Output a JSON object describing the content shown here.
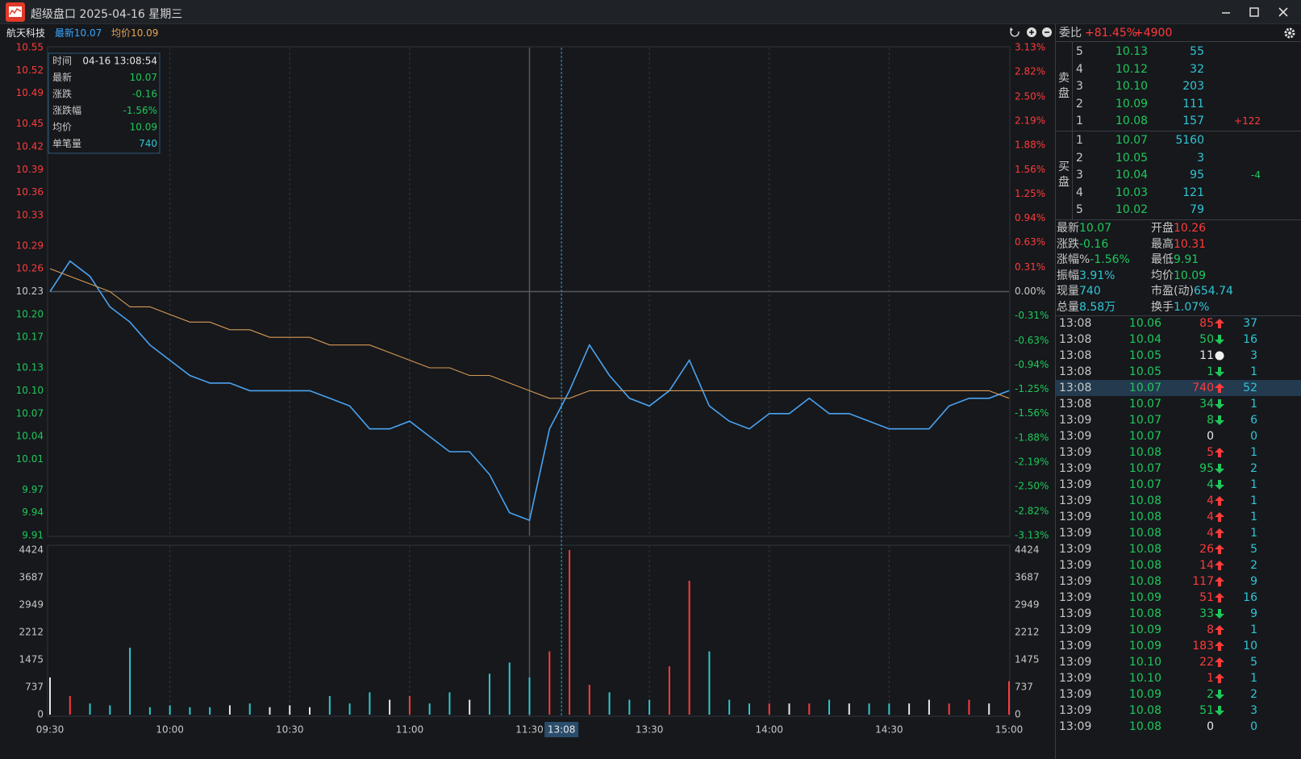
{
  "window": {
    "title": "超级盘口 2025-04-16 星期三"
  },
  "stock": {
    "name": "航天科技",
    "latest": "10.07",
    "avg": "10.09"
  },
  "tooltip": {
    "rows": [
      {
        "label": "时间",
        "value": "04-16 13:08:54",
        "tone": "plain"
      },
      {
        "label": "最新",
        "value": "10.07",
        "tone": "down"
      },
      {
        "label": "涨跌",
        "value": "-0.16",
        "tone": "down"
      },
      {
        "label": "涨跌幅",
        "value": "-1.56%",
        "tone": "down"
      },
      {
        "label": "均价",
        "value": "10.09",
        "tone": "down"
      },
      {
        "label": "单笔量",
        "value": "740",
        "tone": "neutral"
      }
    ]
  },
  "chart_data": [
    {
      "type": "line",
      "x": [
        "09:30",
        "09:35",
        "09:40",
        "09:45",
        "09:50",
        "09:55",
        "10:00",
        "10:05",
        "10:10",
        "10:15",
        "10:20",
        "10:25",
        "10:30",
        "10:35",
        "10:40",
        "10:45",
        "10:50",
        "10:55",
        "11:00",
        "11:05",
        "11:10",
        "11:15",
        "11:20",
        "11:25",
        "11:30",
        "13:05",
        "13:10",
        "13:15",
        "13:20",
        "13:25",
        "13:30",
        "13:35",
        "13:40",
        "13:45",
        "13:50",
        "13:55",
        "14:00",
        "14:05",
        "14:10",
        "14:15",
        "14:20",
        "14:25",
        "14:30",
        "14:35",
        "14:40",
        "14:45",
        "14:50",
        "14:55",
        "15:00"
      ],
      "xlim": [
        "09:30",
        "15:00"
      ],
      "xticks": [
        "09:30",
        "10:00",
        "10:30",
        "11:00",
        "11:30",
        "13:30",
        "14:00",
        "14:30",
        "15:00"
      ],
      "crosshair": "13:08",
      "series": [
        {
          "name": "最新",
          "color": "#4aa3f0",
          "values": [
            10.23,
            10.27,
            10.25,
            10.21,
            10.19,
            10.16,
            10.14,
            10.12,
            10.11,
            10.11,
            10.1,
            10.1,
            10.1,
            10.1,
            10.09,
            10.08,
            10.05,
            10.05,
            10.06,
            10.04,
            10.02,
            10.02,
            9.99,
            9.94,
            9.93,
            10.05,
            10.1,
            10.16,
            10.12,
            10.09,
            10.08,
            10.1,
            10.14,
            10.08,
            10.06,
            10.05,
            10.07,
            10.07,
            10.09,
            10.07,
            10.07,
            10.06,
            10.05,
            10.05,
            10.05,
            10.08,
            10.09,
            10.09,
            10.1
          ]
        },
        {
          "name": "均价",
          "color": "#d79a55",
          "values": [
            10.26,
            10.25,
            10.24,
            10.23,
            10.21,
            10.21,
            10.2,
            10.19,
            10.19,
            10.18,
            10.18,
            10.17,
            10.17,
            10.17,
            10.16,
            10.16,
            10.16,
            10.15,
            10.14,
            10.13,
            10.13,
            10.12,
            10.12,
            10.11,
            10.1,
            10.09,
            10.09,
            10.1,
            10.1,
            10.1,
            10.1,
            10.1,
            10.1,
            10.1,
            10.1,
            10.1,
            10.1,
            10.1,
            10.1,
            10.1,
            10.1,
            10.1,
            10.1,
            10.1,
            10.1,
            10.1,
            10.1,
            10.1,
            10.09
          ]
        }
      ],
      "ylim": [
        9.91,
        10.55
      ],
      "yticks": [
        10.55,
        10.52,
        10.49,
        10.45,
        10.42,
        10.39,
        10.36,
        10.33,
        10.29,
        10.26,
        10.23,
        {
          "value": 10.2,
          "label": "10.20"
        },
        10.17,
        10.13,
        {
          "value": 10.1,
          "label": "10.10"
        },
        10.07,
        10.04,
        10.01,
        9.97,
        9.94,
        9.91
      ],
      "y2lim": [
        -3.13,
        3.13
      ],
      "y2ticks": [
        {
          "value": 3.13,
          "label": "3.13%"
        },
        {
          "value": 2.82,
          "label": "2.82%"
        },
        {
          "value": 2.5,
          "label": "2.50%"
        },
        {
          "value": 2.19,
          "label": "2.19%"
        },
        {
          "value": 1.88,
          "label": "1.88%"
        },
        {
          "value": 1.56,
          "label": "1.56%"
        },
        {
          "value": 1.25,
          "label": "1.25%"
        },
        {
          "value": 0.94,
          "label": "0.94%"
        },
        {
          "value": 0.63,
          "label": "0.63%"
        },
        {
          "value": 0.31,
          "label": "0.31%"
        },
        {
          "value": 0,
          "label": "0.00%"
        },
        {
          "value": -0.31,
          "label": "-0.31%"
        },
        {
          "value": -0.63,
          "label": "-0.63%"
        },
        {
          "value": -0.94,
          "label": "-0.94%"
        },
        {
          "value": -1.25,
          "label": "-1.25%"
        },
        {
          "value": -1.56,
          "label": "-1.56%"
        },
        {
          "value": -1.88,
          "label": "-1.88%"
        },
        {
          "value": -2.19,
          "label": "-2.19%"
        },
        {
          "value": -2.5,
          "label": "-2.50%"
        },
        {
          "value": -2.82,
          "label": "-2.82%"
        },
        {
          "value": -3.13,
          "label": "-3.13%"
        }
      ]
    },
    {
      "type": "bar",
      "x": [
        "09:30",
        "09:35",
        "09:40",
        "09:45",
        "09:50",
        "09:55",
        "10:00",
        "10:05",
        "10:10",
        "10:15",
        "10:20",
        "10:25",
        "10:30",
        "10:35",
        "10:40",
        "10:45",
        "10:50",
        "10:55",
        "11:00",
        "11:05",
        "11:10",
        "11:15",
        "11:20",
        "11:25",
        "11:30",
        "13:05",
        "13:10",
        "13:15",
        "13:20",
        "13:25",
        "13:30",
        "13:35",
        "13:40",
        "13:45",
        "13:50",
        "13:55",
        "14:00",
        "14:05",
        "14:10",
        "14:15",
        "14:20",
        "14:25",
        "14:30",
        "14:35",
        "14:40",
        "14:45",
        "14:50",
        "14:55",
        "15:00"
      ],
      "values": [
        1000,
        500,
        300,
        250,
        1800,
        200,
        250,
        200,
        200,
        250,
        300,
        200,
        250,
        200,
        500,
        300,
        600,
        400,
        500,
        300,
        600,
        400,
        1100,
        1400,
        1000,
        1700,
        4424,
        800,
        600,
        400,
        400,
        1300,
        3600,
        1700,
        400,
        300,
        300,
        300,
        300,
        400,
        300,
        300,
        300,
        300,
        400,
        300,
        400,
        300,
        900
      ],
      "ylim": [
        0,
        4424
      ],
      "yticks": [
        0,
        737,
        1475,
        2212,
        2949,
        3687,
        4424
      ]
    }
  ],
  "order_book": {
    "ratio_label": "委比",
    "ratio": "+81.45%",
    "diff": "+4900",
    "sell_label": "卖盘",
    "buy_label": "买盘",
    "sell": [
      {
        "level": "5",
        "price": "10.13",
        "volume": "55"
      },
      {
        "level": "4",
        "price": "10.12",
        "volume": "32"
      },
      {
        "level": "3",
        "price": "10.10",
        "volume": "203"
      },
      {
        "level": "2",
        "price": "10.09",
        "volume": "111"
      },
      {
        "level": "1",
        "price": "10.08",
        "volume": "157",
        "change": "+122"
      }
    ],
    "buy": [
      {
        "level": "1",
        "price": "10.07",
        "volume": "5160"
      },
      {
        "level": "2",
        "price": "10.05",
        "volume": "3"
      },
      {
        "level": "3",
        "price": "10.04",
        "volume": "95",
        "change": "-4"
      },
      {
        "level": "4",
        "price": "10.03",
        "volume": "121"
      },
      {
        "level": "5",
        "price": "10.02",
        "volume": "79"
      }
    ]
  },
  "stats": [
    {
      "label": "最新",
      "value": "10.07",
      "tone": "down"
    },
    {
      "label": "开盘",
      "value": "10.26",
      "tone": "up"
    },
    {
      "label": "涨跌",
      "value": "-0.16",
      "tone": "down"
    },
    {
      "label": "最高",
      "value": "10.31",
      "tone": "up"
    },
    {
      "label": "涨幅%",
      "value": "-1.56%",
      "tone": "down"
    },
    {
      "label": "最低",
      "value": "9.91",
      "tone": "down"
    },
    {
      "label": "振幅",
      "value": "3.91%",
      "tone": "neutral"
    },
    {
      "label": "均价",
      "value": "10.09",
      "tone": "down"
    },
    {
      "label": "现量",
      "value": "740",
      "tone": "neutral"
    },
    {
      "label": "市盈(动)",
      "value": "654.74",
      "tone": "neutral"
    },
    {
      "label": "总量",
      "value": "8.58万",
      "tone": "neutral"
    },
    {
      "label": "换手",
      "value": "1.07%",
      "tone": "neutral"
    }
  ],
  "trades": {
    "selected": 4,
    "rows": [
      {
        "time": "13:08",
        "price": "10.06",
        "volume": "85",
        "dir": "up",
        "count": "37"
      },
      {
        "time": "13:08",
        "price": "10.04",
        "volume": "50",
        "dir": "down",
        "count": "16"
      },
      {
        "time": "13:08",
        "price": "10.05",
        "volume": "11",
        "dir": "neutral",
        "count": "3"
      },
      {
        "time": "13:08",
        "price": "10.05",
        "volume": "1",
        "dir": "down",
        "count": "1"
      },
      {
        "time": "13:08",
        "price": "10.07",
        "volume": "740",
        "dir": "up",
        "count": "52"
      },
      {
        "time": "13:08",
        "price": "10.07",
        "volume": "34",
        "dir": "down",
        "count": "1"
      },
      {
        "time": "13:09",
        "price": "10.07",
        "volume": "8",
        "dir": "down",
        "count": "6"
      },
      {
        "time": "13:09",
        "price": "10.07",
        "volume": "0",
        "dir": "none",
        "count": "0"
      },
      {
        "time": "13:09",
        "price": "10.08",
        "volume": "5",
        "dir": "up",
        "count": "1"
      },
      {
        "time": "13:09",
        "price": "10.07",
        "volume": "95",
        "dir": "down",
        "count": "2"
      },
      {
        "time": "13:09",
        "price": "10.07",
        "volume": "4",
        "dir": "down",
        "count": "1"
      },
      {
        "time": "13:09",
        "price": "10.08",
        "volume": "4",
        "dir": "up",
        "count": "1"
      },
      {
        "time": "13:09",
        "price": "10.08",
        "volume": "4",
        "dir": "up",
        "count": "1"
      },
      {
        "time": "13:09",
        "price": "10.08",
        "volume": "4",
        "dir": "up",
        "count": "1"
      },
      {
        "time": "13:09",
        "price": "10.08",
        "volume": "26",
        "dir": "up",
        "count": "5"
      },
      {
        "time": "13:09",
        "price": "10.08",
        "volume": "14",
        "dir": "up",
        "count": "2"
      },
      {
        "time": "13:09",
        "price": "10.08",
        "volume": "117",
        "dir": "up",
        "count": "9"
      },
      {
        "time": "13:09",
        "price": "10.09",
        "volume": "51",
        "dir": "up",
        "count": "16"
      },
      {
        "time": "13:09",
        "price": "10.08",
        "volume": "33",
        "dir": "down",
        "count": "9"
      },
      {
        "time": "13:09",
        "price": "10.09",
        "volume": "8",
        "dir": "up",
        "count": "1"
      },
      {
        "time": "13:09",
        "price": "10.09",
        "volume": "183",
        "dir": "up",
        "count": "10"
      },
      {
        "time": "13:09",
        "price": "10.10",
        "volume": "22",
        "dir": "up",
        "count": "5"
      },
      {
        "time": "13:09",
        "price": "10.10",
        "volume": "1",
        "dir": "up",
        "count": "1"
      },
      {
        "time": "13:09",
        "price": "10.09",
        "volume": "2",
        "dir": "down",
        "count": "2"
      },
      {
        "time": "13:09",
        "price": "10.08",
        "volume": "51",
        "dir": "down",
        "count": "3"
      },
      {
        "time": "13:09",
        "price": "10.08",
        "volume": "0",
        "dir": "none",
        "count": "0"
      }
    ]
  }
}
